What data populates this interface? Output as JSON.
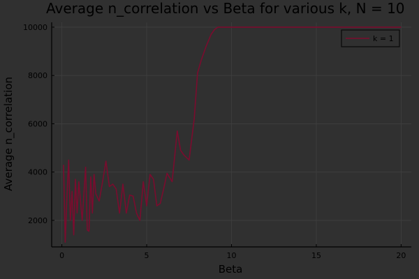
{
  "chart_data": {
    "type": "line",
    "title": "Average n_correlation vs Beta for various k, N = 10",
    "xlabel": "Beta",
    "ylabel": "Average n_correlation",
    "xlim": [
      -0.6,
      20.6
    ],
    "ylim": [
      900,
      10200
    ],
    "xticks": [
      0,
      5,
      10,
      15,
      20
    ],
    "yticks": [
      2000,
      4000,
      6000,
      8000,
      10000
    ],
    "grid": true,
    "legend_position": "top-right",
    "series": [
      {
        "name": "k = 1",
        "color": "#7a0c2e",
        "x": [
          0.1,
          0.2,
          0.3,
          0.4,
          0.5,
          0.6,
          0.7,
          0.8,
          0.9,
          1.0,
          1.2,
          1.4,
          1.5,
          1.6,
          1.7,
          1.8,
          1.9,
          2.0,
          2.2,
          2.4,
          2.6,
          2.8,
          3.0,
          3.2,
          3.4,
          3.6,
          3.8,
          4.0,
          4.2,
          4.4,
          4.6,
          4.8,
          5.0,
          5.2,
          5.4,
          5.6,
          5.8,
          6.0,
          6.2,
          6.5,
          6.8,
          7.0,
          7.2,
          7.5,
          7.8,
          8.0,
          8.2,
          8.5,
          8.8,
          9.0,
          9.2,
          9.4,
          10.0,
          12.0,
          14.0,
          16.0,
          18.0,
          20.0
        ],
        "values": [
          4300,
          1100,
          3000,
          4500,
          2000,
          3200,
          1400,
          3700,
          2300,
          3600,
          2000,
          4200,
          1600,
          1550,
          3800,
          2300,
          3900,
          3100,
          2800,
          3600,
          4450,
          3400,
          3500,
          3300,
          2300,
          3500,
          2300,
          3050,
          3000,
          2300,
          2000,
          3600,
          2600,
          3900,
          3700,
          2600,
          2700,
          3300,
          3950,
          3600,
          5700,
          4900,
          4700,
          4500,
          6200,
          8100,
          8600,
          9200,
          9700,
          9900,
          10000,
          10000,
          10000,
          10000,
          10000,
          10000,
          10000,
          10000
        ]
      }
    ]
  }
}
